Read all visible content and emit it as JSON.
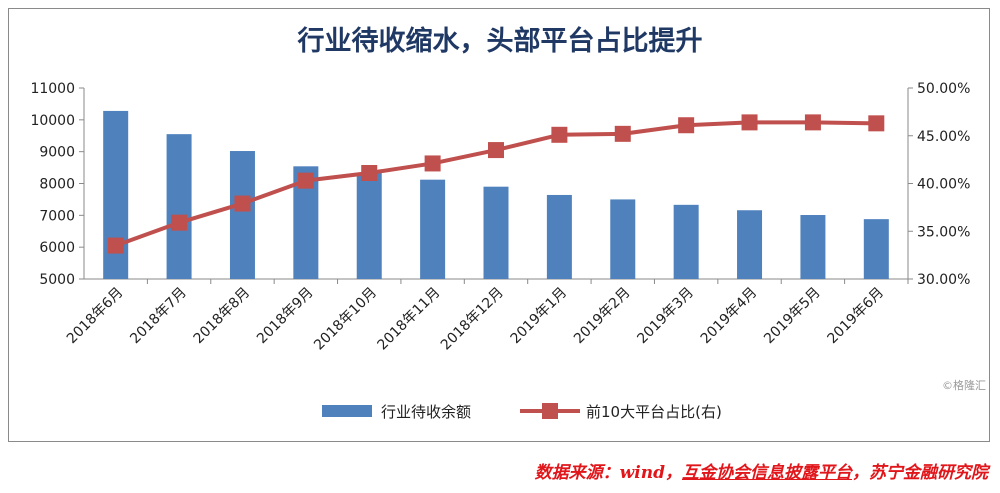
{
  "chart_data": {
    "type": "bar+line",
    "title": "行业待收缩水，头部平台占比提升",
    "categories": [
      "2018年6月",
      "2018年7月",
      "2018年8月",
      "2018年9月",
      "2018年10月",
      "2018年11月",
      "2018年12月",
      "2019年1月",
      "2019年2月",
      "2019年3月",
      "2019年4月",
      "2019年5月",
      "2019年6月"
    ],
    "series": [
      {
        "name": "行业待收余额",
        "kind": "bar",
        "axis": "left",
        "color": "#4f81bd",
        "values": [
          10280,
          9550,
          9020,
          8540,
          8330,
          8120,
          7900,
          7640,
          7500,
          7330,
          7160,
          7010,
          6880
        ]
      },
      {
        "name": "前10大平台占比(右)",
        "kind": "line",
        "axis": "right",
        "color": "#c0504d",
        "values": [
          33.5,
          35.9,
          37.9,
          40.3,
          41.1,
          42.1,
          43.5,
          45.1,
          45.2,
          46.1,
          46.4,
          46.4,
          46.3
        ]
      }
    ],
    "y_left": {
      "min": 5000,
      "max": 11000,
      "ticks": [
        "5000",
        "6000",
        "7000",
        "8000",
        "9000",
        "10000",
        "11000"
      ]
    },
    "y_right": {
      "min": 30,
      "max": 50,
      "ticks": [
        "30.00%",
        "35.00%",
        "40.00%",
        "45.00%",
        "50.00%"
      ]
    },
    "legend_position": "bottom",
    "grid": false
  },
  "source": {
    "prefix": "数据来源：wind，",
    "link": "互金协会信息披露平台",
    "suffix": "，苏宁金融研究院"
  },
  "watermark": "©格隆汇"
}
